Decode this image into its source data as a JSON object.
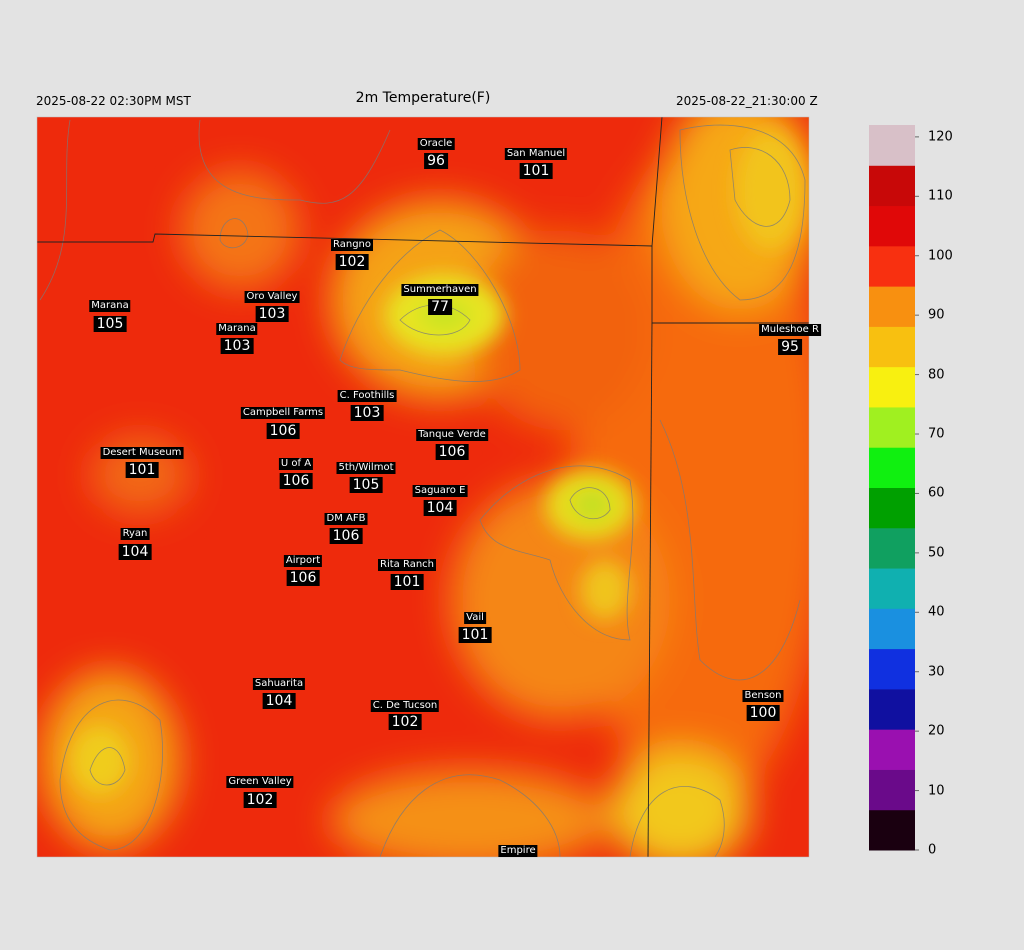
{
  "header": {
    "local_time": "2025-08-22 02:30PM MST",
    "title": "2m Temperature(F)",
    "utc_time": "2025-08-22_21:30:00 Z"
  },
  "stations": [
    {
      "name": "Oracle",
      "value": "96"
    },
    {
      "name": "San Manuel",
      "value": "101"
    },
    {
      "name": "Rangno",
      "value": "102"
    },
    {
      "name": "Summerhaven",
      "value": "77"
    },
    {
      "name": "Marana",
      "value": "105"
    },
    {
      "name": "Oro Valley",
      "value": "103"
    },
    {
      "name": "Marana",
      "value": "103"
    },
    {
      "name": "Muleshoe R",
      "value": "95"
    },
    {
      "name": "C. Foothills",
      "value": "103"
    },
    {
      "name": "Campbell Farms",
      "value": "106"
    },
    {
      "name": "Tanque Verde",
      "value": "106"
    },
    {
      "name": "Desert Museum",
      "value": "101"
    },
    {
      "name": "U of A",
      "value": "106"
    },
    {
      "name": "5th/Wilmot",
      "value": "105"
    },
    {
      "name": "Saguaro E",
      "value": "104"
    },
    {
      "name": "DM AFB",
      "value": "106"
    },
    {
      "name": "Ryan",
      "value": "104"
    },
    {
      "name": "Airport",
      "value": "106"
    },
    {
      "name": "Rita Ranch",
      "value": "101"
    },
    {
      "name": "Vail",
      "value": "101"
    },
    {
      "name": "Benson",
      "value": "100"
    },
    {
      "name": "Sahuarita",
      "value": "104"
    },
    {
      "name": "C. De Tucson",
      "value": "102"
    },
    {
      "name": "Green Valley",
      "value": "102"
    },
    {
      "name": "Empire"
    }
  ],
  "colorbar": {
    "range": [
      0,
      122
    ],
    "ticks": [
      0,
      10,
      20,
      30,
      40,
      50,
      60,
      70,
      80,
      90,
      100,
      110,
      120
    ],
    "colors": [
      "#1a0010",
      "#6a0a8a",
      "#9a10b0",
      "#1010a0",
      "#1030e0",
      "#1a90e0",
      "#10b0b0",
      "#10a060",
      "#00a000",
      "#10f010",
      "#a0f020",
      "#f8f010",
      "#f8c010",
      "#f89010",
      "#f83010",
      "#e00808",
      "#c80808",
      "#d8c0c8"
    ]
  }
}
